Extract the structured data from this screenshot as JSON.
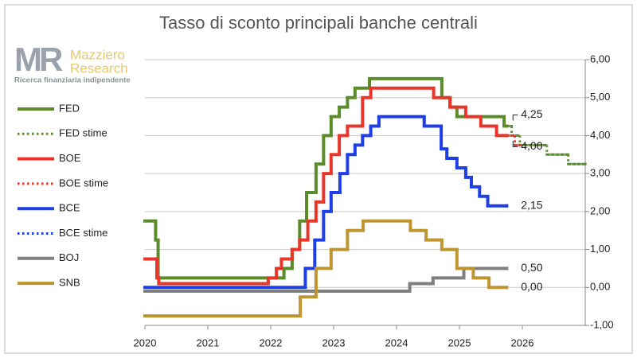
{
  "chart_data": {
    "type": "step-line",
    "title": "Tasso di sconto principali banche centrali",
    "logo": {
      "mark": "MR",
      "name_1": "Mazziero",
      "name_2": "Research",
      "tagline": "Ricerca finanziaria indipendente"
    },
    "xlim": [
      2020,
      2027
    ],
    "xticks": [
      2020,
      2021,
      2022,
      2023,
      2024,
      2025,
      2026
    ],
    "ylim": [
      -1,
      6
    ],
    "yticks": [
      {
        "value": -1,
        "label": "-1,00"
      },
      {
        "value": 0,
        "label": "0,00"
      },
      {
        "value": 1,
        "label": "1,00"
      },
      {
        "value": 2,
        "label": "2,00"
      },
      {
        "value": 3,
        "label": "3,00"
      },
      {
        "value": 4,
        "label": "4,00"
      },
      {
        "value": 5,
        "label": "5,00"
      },
      {
        "value": 6,
        "label": "6,00"
      }
    ],
    "grid": true,
    "legend": "left",
    "series": [
      {
        "name": "FED",
        "color": "#5b8c2a",
        "dashed": false,
        "end_label": "4,25",
        "x": [
          2020,
          2020.17,
          2020.21,
          2022.21,
          2022.34,
          2022.46,
          2022.57,
          2022.72,
          2022.84,
          2022.96,
          2023.09,
          2023.22,
          2023.34,
          2023.57,
          2024.72,
          2024.85,
          2024.96,
          2025.71,
          2025.75
        ],
        "values": [
          1.75,
          1.25,
          0.25,
          0.5,
          1.0,
          1.75,
          2.5,
          3.25,
          4.0,
          4.5,
          4.75,
          5.0,
          5.25,
          5.5,
          5.0,
          4.75,
          4.5,
          4.25,
          4.25
        ]
      },
      {
        "name": "FED stime",
        "color": "#5b8c2a",
        "dashed": true,
        "x": [
          2025.75,
          2025.83,
          2025.96,
          2026.39,
          2026.73,
          2027
        ],
        "values": [
          4.25,
          4.0,
          3.75,
          3.5,
          3.25,
          3.25
        ]
      },
      {
        "name": "BOE",
        "color": "#e8362a",
        "dashed": false,
        "end_label": "4,00",
        "x": [
          2020,
          2020.19,
          2020.22,
          2021.96,
          2022.09,
          2022.17,
          2022.34,
          2022.46,
          2022.59,
          2022.72,
          2022.84,
          2022.96,
          2023.09,
          2023.22,
          2023.46,
          2023.59,
          2024.59,
          2024.85,
          2025.1,
          2025.34,
          2025.59,
          2025.75
        ],
        "values": [
          0.75,
          0.25,
          0.1,
          0.25,
          0.5,
          0.75,
          1.0,
          1.25,
          1.75,
          2.25,
          3.0,
          3.5,
          4.0,
          4.25,
          5.0,
          5.25,
          5.0,
          4.75,
          4.5,
          4.25,
          4.0,
          4.0
        ]
      },
      {
        "name": "BOE stime",
        "color": "#e8362a",
        "dashed": true,
        "x": [
          2025.75,
          2025.88,
          2025.96
        ],
        "values": [
          4.0,
          3.75,
          3.75
        ]
      },
      {
        "name": "BCE",
        "color": "#1f3fe6",
        "dashed": false,
        "end_label": "2,15",
        "x": [
          2020,
          2022.55,
          2022.7,
          2022.84,
          2022.96,
          2023.1,
          2023.22,
          2023.34,
          2023.46,
          2023.59,
          2023.72,
          2024.44,
          2024.71,
          2024.8,
          2024.96,
          2025.1,
          2025.19,
          2025.32,
          2025.45,
          2025.75
        ],
        "values": [
          0,
          0.5,
          1.25,
          2.0,
          2.5,
          3.0,
          3.5,
          3.75,
          4.0,
          4.25,
          4.5,
          4.25,
          3.65,
          3.4,
          3.15,
          2.9,
          2.65,
          2.4,
          2.15,
          2.15
        ]
      },
      {
        "name": "BCE stime",
        "color": "#1f3fe6",
        "dashed": true,
        "x": [],
        "values": []
      },
      {
        "name": "BOJ",
        "color": "#7f7f7f",
        "dashed": false,
        "end_label": "0,50",
        "x": [
          2020,
          2024.21,
          2024.58,
          2025.07,
          2025.75
        ],
        "values": [
          -0.1,
          0.1,
          0.25,
          0.5,
          0.5
        ]
      },
      {
        "name": "SNB",
        "color": "#bf9532",
        "dashed": false,
        "end_label": "0,00",
        "x": [
          2020,
          2022.47,
          2022.72,
          2022.96,
          2023.22,
          2023.47,
          2024.22,
          2024.47,
          2024.72,
          2024.96,
          2025.22,
          2025.47,
          2025.75
        ],
        "values": [
          -0.75,
          -0.25,
          0.5,
          1.0,
          1.5,
          1.75,
          1.5,
          1.25,
          1.0,
          0.5,
          0.25,
          0.0,
          0.0
        ]
      }
    ]
  }
}
